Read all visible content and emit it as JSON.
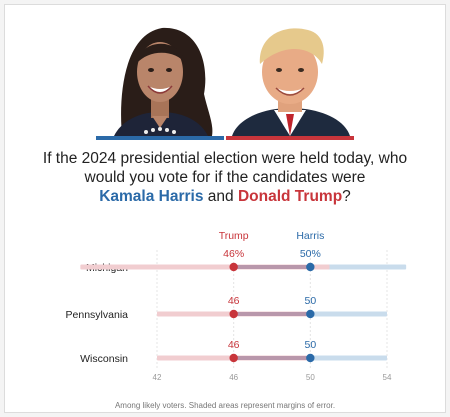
{
  "question": {
    "line1": "If the 2024 presidential election were held today, who",
    "line2": "would you vote for if the candidates were",
    "harris_name": "Kamala Harris",
    "conjunction": "and",
    "trump_name": "Donald Trump",
    "end": "?"
  },
  "colors": {
    "harris": "#2b6aa8",
    "trump": "#c8353b",
    "overlap": "#8a6c8d",
    "harris_band": "#c9dcec",
    "trump_band": "#f1cdd0"
  },
  "chart_data": {
    "type": "dot-range",
    "series": [
      {
        "name": "Trump",
        "header_value": "46%"
      },
      {
        "name": "Harris",
        "header_value": "50%"
      }
    ],
    "rows": [
      {
        "state": "Michigan",
        "trump": 46,
        "harris": 50,
        "trump_label": "46%",
        "harris_label": "50%",
        "trump_range": [
          38,
          51
        ],
        "harris_range": [
          45,
          55
        ]
      },
      {
        "state": "Pennsylvania",
        "trump": 46,
        "harris": 50,
        "trump_label": "46",
        "harris_label": "50",
        "trump_range": [
          42,
          50
        ],
        "harris_range": [
          46,
          54
        ]
      },
      {
        "state": "Wisconsin",
        "trump": 46,
        "harris": 50,
        "trump_label": "46",
        "harris_label": "50",
        "trump_range": [
          42,
          50
        ],
        "harris_range": [
          46,
          54
        ]
      }
    ],
    "x_ticks": [
      "42",
      "46",
      "50",
      "54"
    ],
    "xlim": [
      42,
      54
    ],
    "grid": true
  },
  "footnote": "Among likely voters. Shaded areas represent margins of error."
}
